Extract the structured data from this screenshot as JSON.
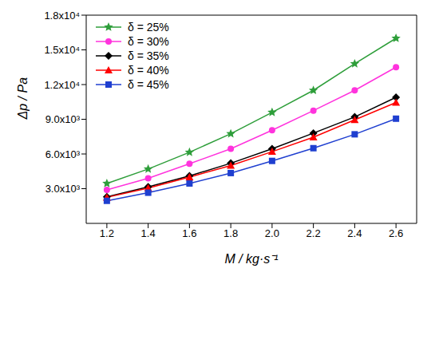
{
  "chart_data": {
    "type": "line",
    "x_label": "M / kg·s⁻¹",
    "y_label": "Δp / Pa",
    "x": [
      1.2,
      1.4,
      1.6,
      1.8,
      2.0,
      2.2,
      2.4,
      2.6
    ],
    "xlim": [
      1.1,
      2.7
    ],
    "xticks": [
      {
        "value": 1.2,
        "label": "1.2"
      },
      {
        "value": 1.4,
        "label": "1.4"
      },
      {
        "value": 1.6,
        "label": "1.6"
      },
      {
        "value": 1.8,
        "label": "1.8"
      },
      {
        "value": 2.0,
        "label": "2.0"
      },
      {
        "value": 2.2,
        "label": "2.2"
      },
      {
        "value": 2.4,
        "label": "2.4"
      },
      {
        "value": 2.6,
        "label": "2.6"
      }
    ],
    "ylim": [
      0,
      18000
    ],
    "yticks": [
      {
        "value": 3000,
        "label": "3.0x10³"
      },
      {
        "value": 6000,
        "label": "6.0x10³"
      },
      {
        "value": 9000,
        "label": "9.0x10³"
      },
      {
        "value": 12000,
        "label": "1.2x10⁴"
      },
      {
        "value": 15000,
        "label": "1.5x10⁴"
      },
      {
        "value": 18000,
        "label": "1.8x10⁴"
      }
    ],
    "grid": false,
    "legend": "upper left",
    "series": [
      {
        "name": "δ = 25%",
        "color": "#2e9e3a",
        "marker": "star",
        "values": [
          3450,
          4700,
          6150,
          7750,
          9600,
          11500,
          13800,
          16000
        ]
      },
      {
        "name": "δ = 30%",
        "color": "#ff33dd",
        "marker": "circle",
        "values": [
          2900,
          3900,
          5150,
          6450,
          8050,
          9750,
          11500,
          13500
        ]
      },
      {
        "name": "δ = 35%",
        "color": "#000000",
        "marker": "diamond",
        "values": [
          2300,
          3150,
          4100,
          5200,
          6450,
          7800,
          9200,
          10900
        ]
      },
      {
        "name": "δ = 40%",
        "color": "#ff0000",
        "marker": "triangle",
        "values": [
          2250,
          3050,
          4000,
          5000,
          6200,
          7450,
          8950,
          10450
        ]
      },
      {
        "name": "δ = 45%",
        "color": "#1f3fd0",
        "marker": "square",
        "values": [
          1950,
          2650,
          3450,
          4350,
          5400,
          6500,
          7700,
          9050
        ]
      }
    ]
  }
}
